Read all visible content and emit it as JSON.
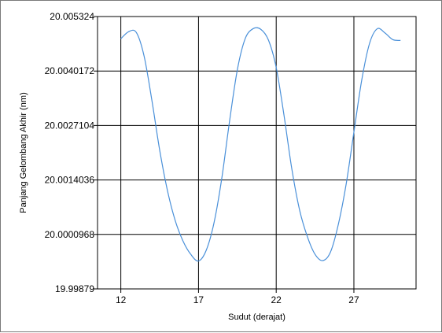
{
  "chart_data": {
    "type": "line",
    "title": "",
    "xlabel": "Sudut (derajat)",
    "ylabel": "Panjang Gelombang Akhir (nm)",
    "xlim": [
      10.5,
      31
    ],
    "ylim": [
      19.99879,
      20.005324
    ],
    "x_ticks": [
      12,
      17,
      22,
      27
    ],
    "y_ticks": [
      19.99879,
      20.0000968,
      20.0014036,
      20.0027104,
      20.0040172,
      20.005324
    ],
    "y_tick_labels": [
      "19.99879",
      "20.0000968",
      "20.0014036",
      "20.0027104",
      "20.0040172",
      "20.005324"
    ],
    "grid": true,
    "line_color": "#4a90d9",
    "series": [
      {
        "x": [
          12,
          12.5,
          13,
          13.5,
          14,
          14.5,
          15,
          15.5,
          16,
          16.5,
          17,
          17.5,
          18,
          18.5,
          19,
          19.5,
          20,
          20.5,
          21,
          21.5,
          22,
          22.5,
          23,
          23.5,
          24,
          24.5,
          25,
          25.5,
          26,
          26.5,
          27,
          27.5,
          28,
          28.5,
          29,
          29.5,
          30
        ],
        "y": [
          20.00479,
          20.00496,
          20.00494,
          20.00437,
          20.00331,
          20.00212,
          20.00115,
          20.00043,
          19.99994,
          19.99962,
          19.99946,
          19.99972,
          20.00038,
          20.00145,
          20.00282,
          20.00405,
          20.00479,
          20.00503,
          20.00502,
          20.00476,
          20.0041,
          20.00296,
          20.00168,
          20.00069,
          20.00005,
          19.99962,
          19.99947,
          19.99968,
          20.00034,
          20.0013,
          20.00255,
          20.00379,
          20.00467,
          20.00503,
          20.00493,
          20.00477,
          20.00475
        ]
      }
    ]
  }
}
